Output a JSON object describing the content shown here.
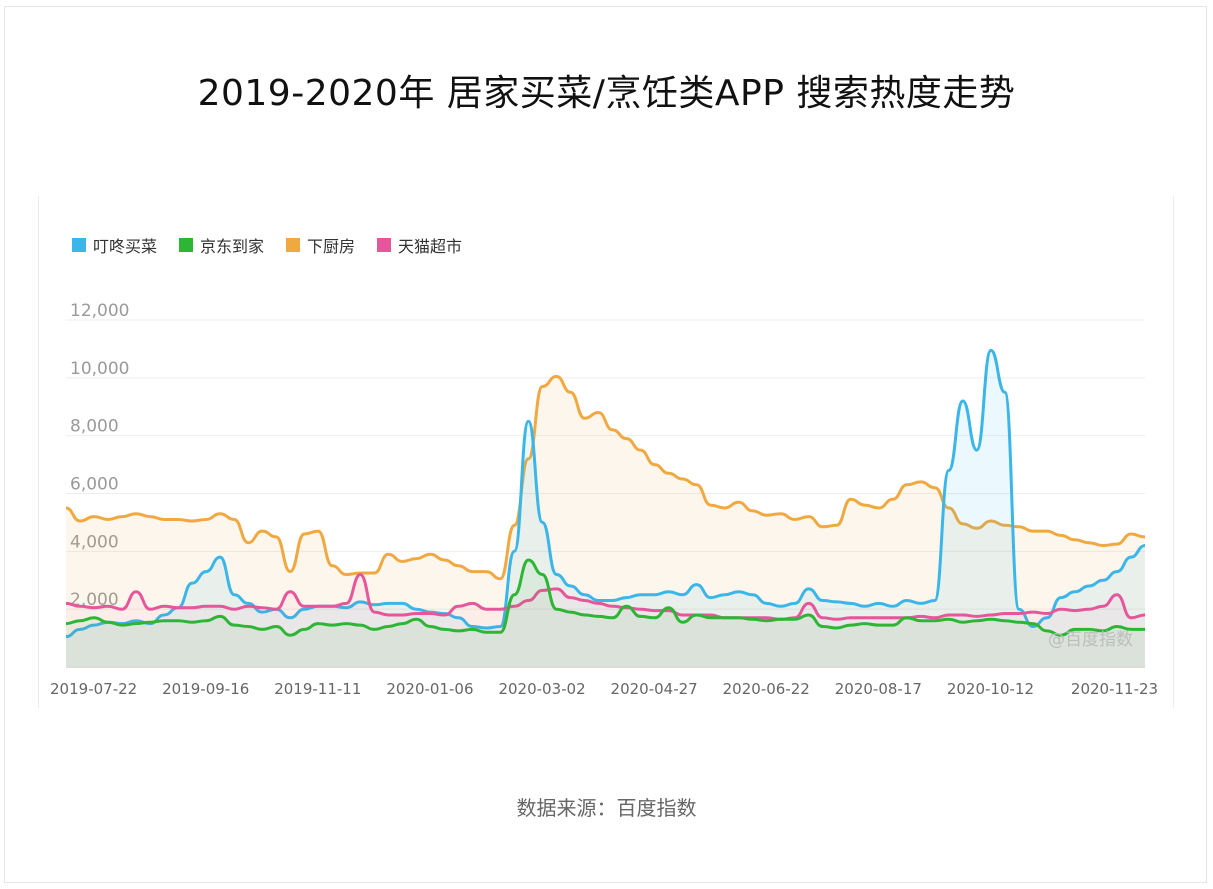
{
  "title": "2019-2020年 居家买菜/烹饪类APP 搜索热度走势",
  "source": "数据来源：百度指数",
  "watermark": "@百度指数",
  "chart_data": {
    "type": "area",
    "ylim": [
      0,
      12000
    ],
    "yticks": [
      "12,000",
      "10,000",
      "8,000",
      "6,000",
      "4,000",
      "2,000"
    ],
    "ytick_values": [
      12000,
      10000,
      8000,
      6000,
      4000,
      2000
    ],
    "xticks": [
      "2019-07-22",
      "2019-09-16",
      "2019-11-11",
      "2020-01-06",
      "2020-03-02",
      "2020-04-27",
      "2020-06-22",
      "2020-08-17",
      "2020-10-12",
      "2020-11-23"
    ],
    "xtick_week": [
      2,
      10,
      18,
      26,
      34,
      42,
      50,
      58,
      66,
      72
    ],
    "week_count": 78,
    "legend_position": "top-left",
    "series": [
      {
        "name": "下厨房",
        "color": "#f0a940",
        "values": [
          5500,
          5050,
          5200,
          5100,
          5200,
          5300,
          5200,
          5100,
          5100,
          5050,
          5100,
          5300,
          5100,
          4300,
          4700,
          4500,
          3300,
          4600,
          4700,
          3500,
          3200,
          3250,
          3250,
          3900,
          3650,
          3750,
          3900,
          3700,
          3500,
          3300,
          3300,
          3050,
          4900,
          7200,
          9700,
          10050,
          9500,
          8600,
          8800,
          8200,
          7900,
          7500,
          7000,
          6700,
          6500,
          6300,
          5600,
          5500,
          5700,
          5400,
          5250,
          5300,
          5100,
          5200,
          4850,
          4900,
          5800,
          5600,
          5500,
          5800,
          6300,
          6400,
          6200,
          5500,
          4950,
          4800,
          5050,
          4900,
          4850,
          4700,
          4700,
          4550,
          4400,
          4300,
          4200,
          4250,
          4600,
          4500
        ]
      },
      {
        "name": "叮咚买菜",
        "color": "#3ab6e8",
        "values": [
          1050,
          1300,
          1450,
          1550,
          1500,
          1600,
          1500,
          1800,
          2050,
          2900,
          3300,
          3800,
          2500,
          2200,
          1900,
          2000,
          1700,
          2000,
          2100,
          2100,
          2050,
          2250,
          2150,
          2200,
          2200,
          2000,
          1900,
          1850,
          1700,
          1400,
          1350,
          1400,
          4000,
          8500,
          5000,
          3200,
          2800,
          2500,
          2300,
          2300,
          2400,
          2500,
          2500,
          2600,
          2500,
          2850,
          2400,
          2500,
          2600,
          2500,
          2200,
          2100,
          2200,
          2700,
          2300,
          2250,
          2200,
          2100,
          2200,
          2100,
          2300,
          2200,
          2300,
          6800,
          9200,
          7500,
          10950,
          9500,
          2000,
          1400,
          1700,
          2400,
          2600,
          2800,
          3000,
          3300,
          3800,
          4200
        ]
      },
      {
        "name": "天猫超市",
        "color": "#e6569a",
        "values": [
          2200,
          2100,
          2050,
          2100,
          2000,
          2600,
          2000,
          2100,
          2050,
          2050,
          2100,
          2100,
          2000,
          2100,
          2050,
          2000,
          2600,
          2100,
          2100,
          2100,
          2200,
          3200,
          1900,
          1800,
          1800,
          1850,
          1850,
          1800,
          2100,
          2200,
          2000,
          2000,
          2100,
          2300,
          2650,
          2700,
          2400,
          2300,
          2200,
          2100,
          2050,
          2000,
          1950,
          1950,
          1800,
          1800,
          1800,
          1700,
          1700,
          1700,
          1700,
          1650,
          1700,
          2200,
          1700,
          1650,
          1700,
          1700,
          1700,
          1700,
          1700,
          1750,
          1700,
          1800,
          1800,
          1750,
          1800,
          1850,
          1850,
          1900,
          1850,
          2000,
          1950,
          2000,
          2100,
          2500,
          1700,
          1800
        ]
      },
      {
        "name": "京东到家",
        "color": "#2db636",
        "values": [
          1500,
          1600,
          1700,
          1550,
          1450,
          1500,
          1550,
          1600,
          1600,
          1550,
          1600,
          1750,
          1450,
          1400,
          1300,
          1400,
          1100,
          1300,
          1500,
          1450,
          1500,
          1450,
          1300,
          1400,
          1500,
          1650,
          1400,
          1300,
          1250,
          1300,
          1200,
          1200,
          2500,
          3700,
          3200,
          2000,
          1900,
          1800,
          1750,
          1700,
          2100,
          1750,
          1700,
          2050,
          1550,
          1800,
          1700,
          1700,
          1700,
          1650,
          1600,
          1650,
          1650,
          1800,
          1400,
          1350,
          1450,
          1500,
          1450,
          1450,
          1700,
          1600,
          1600,
          1650,
          1550,
          1600,
          1650,
          1600,
          1550,
          1500,
          1250,
          1100,
          1300,
          1300,
          1250,
          1400,
          1300,
          1300
        ]
      }
    ],
    "legend": [
      {
        "name": "叮咚买菜",
        "color": "#3ab6e8"
      },
      {
        "name": "京东到家",
        "color": "#2db636"
      },
      {
        "name": "下厨房",
        "color": "#f0a940"
      },
      {
        "name": "天猫超市",
        "color": "#e6569a"
      }
    ]
  }
}
